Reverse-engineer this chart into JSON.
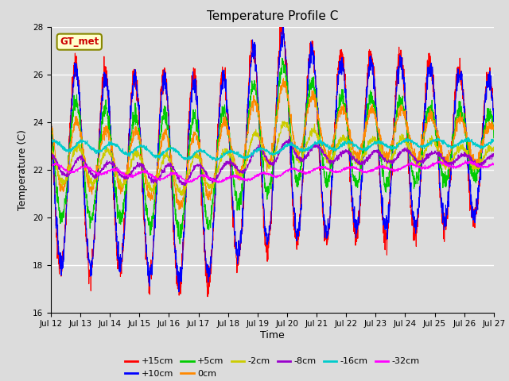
{
  "title": "Temperature Profile C",
  "xlabel": "Time",
  "ylabel": "Temperature (C)",
  "ylim": [
    16,
    28
  ],
  "xlim": [
    0,
    360
  ],
  "background_color": "#dcdcdc",
  "plot_bg_color": "#dcdcdc",
  "legend_label": "GT_met",
  "legend_bg": "#ffffcc",
  "legend_border": "#888800",
  "series_colors": {
    "+15cm": "#ff0000",
    "+10cm": "#0000ff",
    "+5cm": "#00cc00",
    "0cm": "#ff8800",
    "-2cm": "#cccc00",
    "-8cm": "#9900cc",
    "-16cm": "#00cccc",
    "-32cm": "#ff00ff"
  },
  "tick_labels": [
    "Jul 12",
    "Jul 13",
    "Jul 14",
    "Jul 15",
    "Jul 16",
    "Jul 17",
    "Jul 18",
    "Jul 19",
    "Jul 20",
    "Jul 21",
    "Jul 22",
    "Jul 23",
    "Jul 24",
    "Jul 25",
    "Jul 26",
    "Jul 27"
  ],
  "n_points": 2160,
  "hours_total": 360
}
